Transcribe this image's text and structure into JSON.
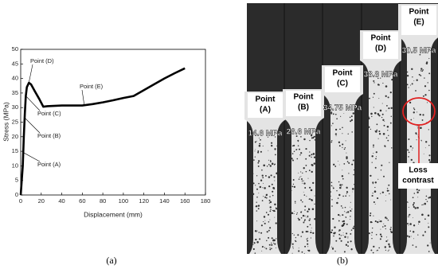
{
  "chart_data": {
    "type": "line",
    "xlabel": "Displacement (mm)",
    "ylabel": "Stress (MPa)",
    "caption": "(a)",
    "x": [
      0,
      2,
      3,
      4,
      5,
      6,
      8,
      10,
      14,
      18,
      22,
      26,
      40,
      60,
      70,
      80,
      90,
      100,
      110,
      120,
      130,
      140,
      150,
      160
    ],
    "series": [
      {
        "color": "#000000",
        "values": [
          0,
          10,
          20,
          28,
          34,
          37,
          38.5,
          38,
          35.5,
          33,
          30.3,
          30.5,
          30.7,
          30.7,
          31.2,
          31.8,
          32.5,
          33.3,
          34,
          36,
          38,
          40,
          41.8,
          43.5
        ]
      }
    ],
    "xlim": [
      0,
      180
    ],
    "ylim": [
      0,
      50
    ],
    "xticks": [
      0,
      20,
      40,
      60,
      80,
      100,
      120,
      140,
      160,
      180
    ],
    "yticks": [
      0,
      5,
      10,
      15,
      20,
      25,
      30,
      35,
      40,
      45,
      50
    ],
    "annotations": [
      {
        "text": "Point (D)",
        "x": 8,
        "y": 38.6
      },
      {
        "text": "Point (E)",
        "x": 62,
        "y": 30.7
      },
      {
        "text": "Point (C)",
        "x": 5,
        "y": 34
      },
      {
        "text": "Point (B)",
        "x": 3.6,
        "y": 26.6
      },
      {
        "text": "Point (A)",
        "x": 2.4,
        "y": 14.6
      }
    ]
  },
  "photo": {
    "caption": "(b)",
    "specimens": [
      {
        "label": [
          "Point",
          "(A)"
        ],
        "stress": "14.6 MPa"
      },
      {
        "label": [
          "Point",
          "(B)"
        ],
        "stress": "26.6 MPa"
      },
      {
        "label": [
          "Point",
          "(C)"
        ],
        "stress": "34.75 MPa"
      },
      {
        "label": [
          "Point",
          "(D)"
        ],
        "stress": "38.8 MPa"
      },
      {
        "label": [
          "Point",
          "(E)"
        ],
        "stress": "30.5 MPa"
      }
    ],
    "note": [
      "Loss",
      "contrast"
    ]
  }
}
